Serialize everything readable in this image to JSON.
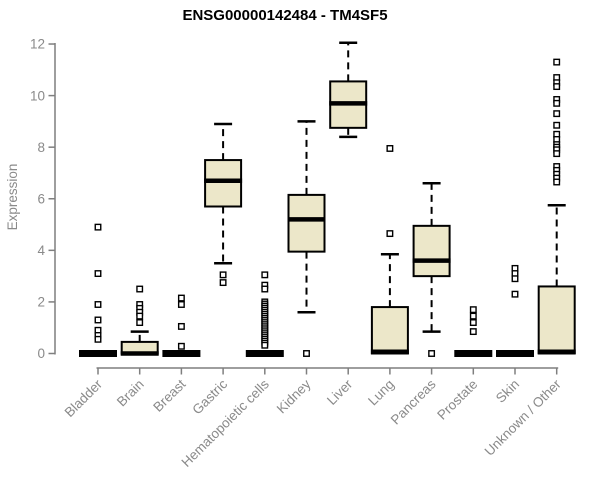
{
  "title": "ENSG00000142484 - TM4SF5",
  "colors": {
    "background": "#ffffff",
    "box_fill": "#ece7c9",
    "box_border": "#000000",
    "median": "#000000",
    "whisker": "#000000",
    "outlier_fill": "#ffffff",
    "axis": "#7f7f7f",
    "tick_text": "#8a8a8a",
    "title_text": "#000000"
  },
  "chart_data": {
    "type": "boxplot",
    "title": "ENSG00000142484 - TM4SF5",
    "xlabel": "",
    "ylabel": "Expression",
    "ylim": [
      0,
      12
    ],
    "yticks": [
      0,
      2,
      4,
      6,
      8,
      10,
      12
    ],
    "grid": false,
    "legend": false,
    "categories": [
      "Bladder",
      "Brain",
      "Breast",
      "Gastric",
      "Hematopoietic cells",
      "Kidney",
      "Liver",
      "Lung",
      "Pancreas",
      "Prostate",
      "Skin",
      "Unknown / Other"
    ],
    "series": [
      {
        "name": "Bladder",
        "q1": 0,
        "median": 0,
        "q3": 0,
        "whisker_low": 0,
        "whisker_high": 0,
        "outliers": [
          4.9,
          3.1,
          1.9,
          1.3,
          0.9,
          0.7,
          0.55
        ]
      },
      {
        "name": "Brain",
        "q1": 0,
        "median": 0,
        "q3": 0.45,
        "whisker_low": 0,
        "whisker_high": 0.85,
        "outliers": [
          2.5,
          1.9,
          1.75,
          1.6,
          1.45,
          1.2
        ]
      },
      {
        "name": "Breast",
        "q1": 0,
        "median": 0,
        "q3": 0,
        "whisker_low": 0,
        "whisker_high": 0,
        "outliers": [
          2.15,
          1.9,
          1.05,
          0.28
        ]
      },
      {
        "name": "Gastric",
        "q1": 5.7,
        "median": 6.7,
        "q3": 7.5,
        "whisker_low": 3.5,
        "whisker_high": 8.9,
        "outliers": [
          3.05,
          2.75
        ]
      },
      {
        "name": "Hematopoietic cells",
        "q1": 0,
        "median": 0,
        "q3": 0,
        "whisker_low": 0,
        "whisker_high": 0,
        "outliers": [
          3.05,
          2.65,
          2.5,
          2.0,
          1.92,
          1.84,
          1.76,
          1.68,
          1.6,
          1.52,
          1.44,
          1.36,
          1.28,
          1.2,
          1.12,
          1.04,
          0.96,
          0.88,
          0.8,
          0.72,
          0.64,
          0.56,
          0.48,
          0.4,
          0.32
        ]
      },
      {
        "name": "Kidney",
        "q1": 3.95,
        "median": 5.2,
        "q3": 6.15,
        "whisker_low": 1.6,
        "whisker_high": 9.0,
        "outliers": [
          0
        ]
      },
      {
        "name": "Liver",
        "q1": 8.75,
        "median": 9.7,
        "q3": 10.55,
        "whisker_low": 8.4,
        "whisker_high": 12.05,
        "outliers": []
      },
      {
        "name": "Lung",
        "q1": 0,
        "median": 0.07,
        "q3": 1.8,
        "whisker_low": 0,
        "whisker_high": 3.85,
        "outliers": [
          7.95,
          4.65
        ]
      },
      {
        "name": "Pancreas",
        "q1": 3.0,
        "median": 3.6,
        "q3": 4.95,
        "whisker_low": 0.85,
        "whisker_high": 6.6,
        "outliers": [
          0
        ]
      },
      {
        "name": "Prostate",
        "q1": 0,
        "median": 0,
        "q3": 0,
        "whisker_low": 0,
        "whisker_high": 0,
        "outliers": [
          1.7,
          1.45,
          1.2,
          0.85
        ]
      },
      {
        "name": "Skin",
        "q1": 0,
        "median": 0,
        "q3": 0,
        "whisker_low": 0,
        "whisker_high": 0,
        "outliers": [
          3.3,
          3.1,
          2.9,
          2.3
        ]
      },
      {
        "name": "Unknown / Other",
        "q1": 0,
        "median": 0.07,
        "q3": 2.6,
        "whisker_low": 0,
        "whisker_high": 5.75,
        "outliers": [
          11.3,
          10.7,
          10.5,
          10.35,
          9.85,
          9.7,
          9.3,
          8.85,
          8.5,
          8.3,
          8.1,
          8.0,
          7.9,
          7.75,
          7.25,
          7.1,
          6.95,
          6.8,
          6.65
        ]
      }
    ]
  }
}
